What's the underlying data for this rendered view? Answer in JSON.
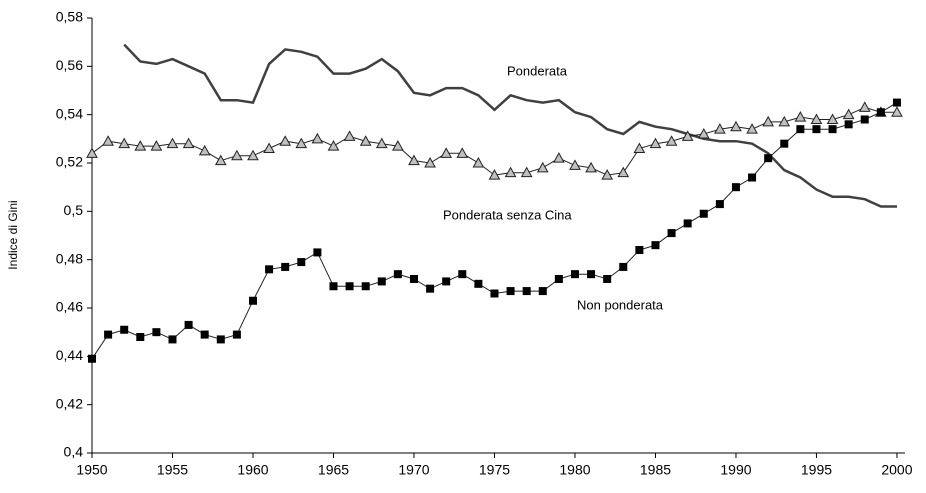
{
  "chart_data": {
    "type": "line",
    "y_label": "Indice di Gini",
    "x": [
      1950,
      1951,
      1952,
      1953,
      1954,
      1955,
      1956,
      1957,
      1958,
      1959,
      1960,
      1961,
      1962,
      1963,
      1964,
      1965,
      1966,
      1967,
      1968,
      1969,
      1970,
      1971,
      1972,
      1973,
      1974,
      1975,
      1976,
      1977,
      1978,
      1979,
      1980,
      1981,
      1982,
      1983,
      1984,
      1985,
      1986,
      1987,
      1988,
      1989,
      1990,
      1991,
      1992,
      1993,
      1994,
      1995,
      1996,
      1997,
      1998,
      1999,
      2000
    ],
    "series": [
      {
        "name": "Ponderata",
        "color": "#404040",
        "marker": "none",
        "values": [
          null,
          null,
          0.569,
          0.562,
          0.561,
          0.563,
          0.56,
          0.557,
          0.546,
          0.546,
          0.545,
          0.561,
          0.567,
          0.566,
          0.564,
          0.557,
          0.557,
          0.559,
          0.563,
          0.558,
          0.549,
          0.548,
          0.551,
          0.551,
          0.548,
          0.542,
          0.548,
          0.546,
          0.545,
          0.546,
          0.541,
          0.539,
          0.534,
          0.532,
          0.537,
          0.535,
          0.534,
          0.532,
          0.53,
          0.529,
          0.529,
          0.528,
          0.524,
          0.517,
          0.514,
          0.509,
          0.506,
          0.506,
          0.505,
          0.502,
          0.502
        ]
      },
      {
        "name": "Ponderata senza Cina",
        "color": "#c0c0c0",
        "marker": "triangle",
        "values": [
          0.524,
          0.529,
          0.528,
          0.527,
          0.527,
          0.528,
          0.528,
          0.525,
          0.521,
          0.523,
          0.523,
          0.526,
          0.529,
          0.528,
          0.53,
          0.527,
          0.531,
          0.529,
          0.528,
          0.527,
          0.521,
          0.52,
          0.524,
          0.524,
          0.52,
          0.515,
          0.516,
          0.516,
          0.518,
          0.522,
          0.519,
          0.518,
          0.515,
          0.516,
          0.526,
          0.528,
          0.529,
          0.531,
          0.532,
          0.534,
          0.535,
          0.534,
          0.537,
          0.537,
          0.539,
          0.538,
          0.538,
          0.54,
          0.543,
          0.541,
          0.541
        ]
      },
      {
        "name": "Non ponderata",
        "color": "#000000",
        "marker": "square",
        "values": [
          0.439,
          0.449,
          0.451,
          0.448,
          0.45,
          0.447,
          0.453,
          0.449,
          0.447,
          0.449,
          0.463,
          0.476,
          0.477,
          0.479,
          0.483,
          0.469,
          0.469,
          0.469,
          0.471,
          0.474,
          0.472,
          0.468,
          0.471,
          0.474,
          0.47,
          0.466,
          0.467,
          0.467,
          0.467,
          0.472,
          0.474,
          0.474,
          0.472,
          0.477,
          0.484,
          0.486,
          0.491,
          0.495,
          0.499,
          0.503,
          0.51,
          0.514,
          0.522,
          0.528,
          0.534,
          0.534,
          0.534,
          0.536,
          0.538,
          0.541,
          0.545
        ]
      }
    ],
    "xlim": [
      1950,
      2000.5
    ],
    "xticks": [
      1950,
      1955,
      1960,
      1965,
      1970,
      1975,
      1980,
      1985,
      1990,
      1995,
      2000
    ],
    "ylim": [
      0.4,
      0.58
    ],
    "yticks": [
      {
        "value": 0.4,
        "label": "0,4"
      },
      {
        "value": 0.42,
        "label": "0,42"
      },
      {
        "value": 0.44,
        "label": "0,44"
      },
      {
        "value": 0.46,
        "label": "0,46"
      },
      {
        "value": 0.48,
        "label": "0,48"
      },
      {
        "value": 0.5,
        "label": "0,5"
      },
      {
        "value": 0.52,
        "label": "0,52"
      },
      {
        "value": 0.54,
        "label": "0,54"
      },
      {
        "value": 0.56,
        "label": "0,56"
      },
      {
        "value": 0.58,
        "label": "0,58"
      }
    ],
    "grid": false
  }
}
